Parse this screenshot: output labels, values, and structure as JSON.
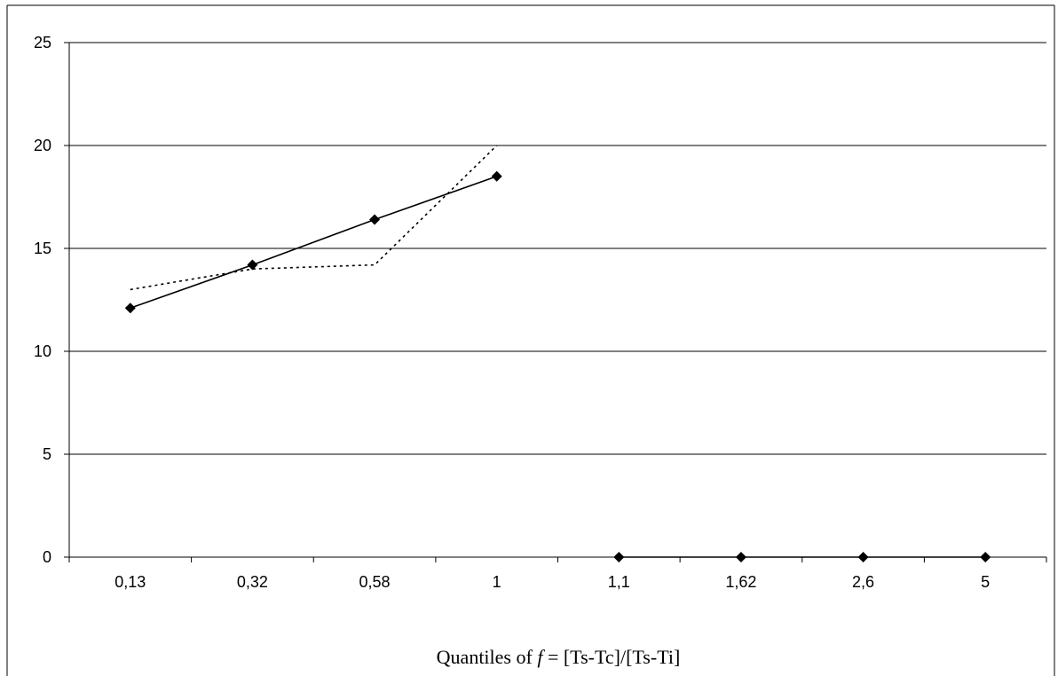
{
  "chart_data": {
    "type": "line",
    "title": "",
    "xlabel_prefix": "Quantiles of ",
    "xlabel_var": "f",
    "xlabel_suffix": " = [Ts-Tc]/[Ts-Ti]",
    "ylabel": "",
    "categories": [
      "0,13",
      "0,32",
      "0,58",
      "1",
      "1,1",
      "1,62",
      "2,6",
      "5"
    ],
    "ylim": [
      0,
      25
    ],
    "yticks": [
      0,
      5,
      10,
      15,
      20,
      25
    ],
    "grid": true,
    "legend": "none",
    "series": [
      {
        "style": "solid",
        "marker": "diamond",
        "color": "#000000",
        "segments": [
          {
            "x": [
              "0,13",
              "0,32",
              "0,58",
              "1"
            ],
            "y": [
              12.1,
              14.2,
              16.4,
              18.5
            ]
          },
          {
            "x": [
              "1,1",
              "1,62",
              "2,6",
              "5"
            ],
            "y": [
              0,
              0,
              0,
              0
            ]
          }
        ]
      },
      {
        "style": "dotted",
        "marker": "none",
        "color": "#000000",
        "segments": [
          {
            "x": [
              0,
              1,
              2,
              3
            ],
            "y": [
              13.0,
              14.0,
              14.2,
              20.0
            ]
          }
        ]
      }
    ]
  }
}
